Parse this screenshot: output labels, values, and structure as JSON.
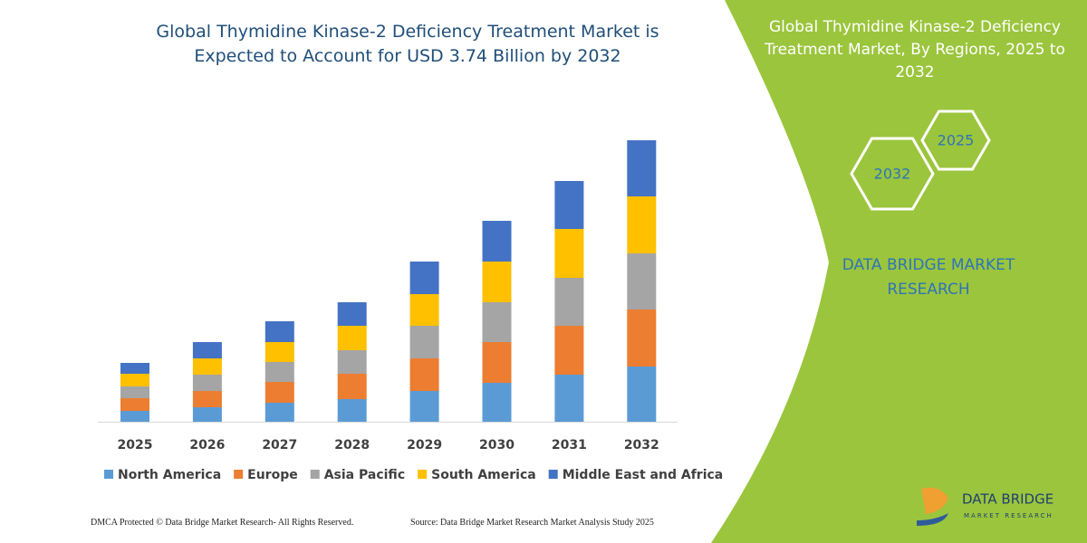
{
  "chart_data": {
    "type": "stacked-bar",
    "title": "Global Thymidine Kinase-2 Deficiency Treatment Market is Expected to Account for USD 3.74 Billion by 2032",
    "categories": [
      "2025",
      "2026",
      "2027",
      "2028",
      "2029",
      "2030",
      "2031",
      "2032"
    ],
    "series": [
      {
        "name": "North America",
        "color": "#5b9bd5",
        "values": [
          12,
          16,
          21,
          25,
          34,
          43,
          52,
          61
        ]
      },
      {
        "name": "Europe",
        "color": "#ed7d31",
        "values": [
          14,
          18,
          23,
          28,
          36,
          45,
          54,
          63
        ]
      },
      {
        "name": "Asia Pacific",
        "color": "#a5a5a5",
        "values": [
          13,
          18,
          22,
          26,
          36,
          44,
          53,
          62
        ]
      },
      {
        "name": "South America",
        "color": "#ffc000",
        "values": [
          14,
          18,
          22,
          27,
          35,
          45,
          54,
          63
        ]
      },
      {
        "name": "Middle East and Africa",
        "color": "#4472c4",
        "values": [
          12,
          18,
          23,
          26,
          36,
          45,
          53,
          62
        ]
      }
    ]
  },
  "side_panel": {
    "title": "Global Thymidine Kinase-2 Deficiency Treatment Market, By Regions, 2025 to 2032",
    "hex_top": "2025",
    "hex_bottom": "2032",
    "brand": "DATA BRIDGE MARKET RESEARCH"
  },
  "footer": {
    "copyright": "DMCA Protected © Data Bridge Market Research- All Rights Reserved.",
    "source": "Source: Data Bridge Market Research Market Analysis Study 2025"
  },
  "logo": {
    "name": "DATA BRIDGE",
    "tagline": "MARKET RESEARCH"
  }
}
